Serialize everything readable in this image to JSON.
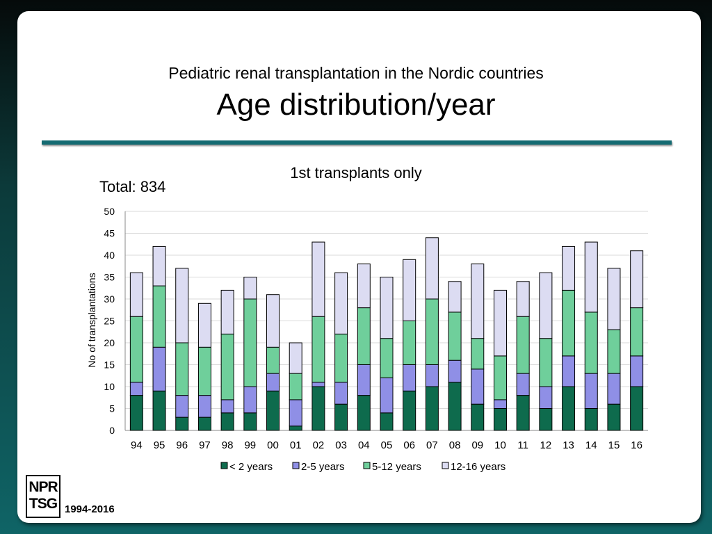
{
  "header": {
    "subtitle": "Pediatric renal transplantation in the Nordic countries",
    "title": "Age distribution/year"
  },
  "total_label": "Total: 834",
  "footer": {
    "logo_line1": "NPR",
    "logo_line2": "TSG",
    "years": "1994-2016"
  },
  "colors": {
    "lt2": "#0e6b4d",
    "y2to5": "#8f8fe6",
    "y5to12": "#6fcf9b",
    "y12to16": "#dcdcf2"
  },
  "chart_data": {
    "type": "bar",
    "stacked": true,
    "title": "1st transplants only",
    "xlabel": "",
    "ylabel": "No of transplantations",
    "ylim": [
      0,
      50
    ],
    "yticks": [
      0,
      5,
      10,
      15,
      20,
      25,
      30,
      35,
      40,
      45,
      50
    ],
    "grid": true,
    "legend_position": "bottom",
    "categories": [
      "94",
      "95",
      "96",
      "97",
      "98",
      "99",
      "00",
      "01",
      "02",
      "03",
      "04",
      "05",
      "06",
      "07",
      "08",
      "09",
      "10",
      "11",
      "12",
      "13",
      "14",
      "15",
      "16"
    ],
    "series": [
      {
        "name": "< 2 years",
        "color_key": "lt2",
        "values": [
          8,
          9,
          3,
          3,
          4,
          4,
          9,
          1,
          10,
          6,
          8,
          4,
          9,
          10,
          11,
          6,
          5,
          8,
          5,
          10,
          5,
          6,
          10
        ]
      },
      {
        "name": "2-5 years",
        "color_key": "y2to5",
        "values": [
          3,
          10,
          5,
          5,
          3,
          6,
          4,
          6,
          1,
          5,
          7,
          8,
          6,
          5,
          5,
          8,
          2,
          5,
          5,
          7,
          8,
          7,
          7
        ]
      },
      {
        "name": "5-12 years",
        "color_key": "y5to12",
        "values": [
          15,
          14,
          12,
          11,
          15,
          20,
          6,
          6,
          15,
          11,
          13,
          9,
          10,
          15,
          11,
          7,
          10,
          13,
          11,
          15,
          14,
          10,
          11
        ]
      },
      {
        "name": "12-16 years",
        "color_key": "y12to16",
        "values": [
          10,
          9,
          17,
          10,
          10,
          5,
          12,
          7,
          17,
          14,
          10,
          14,
          14,
          14,
          7,
          17,
          15,
          8,
          15,
          10,
          16,
          14,
          13
        ]
      }
    ]
  }
}
